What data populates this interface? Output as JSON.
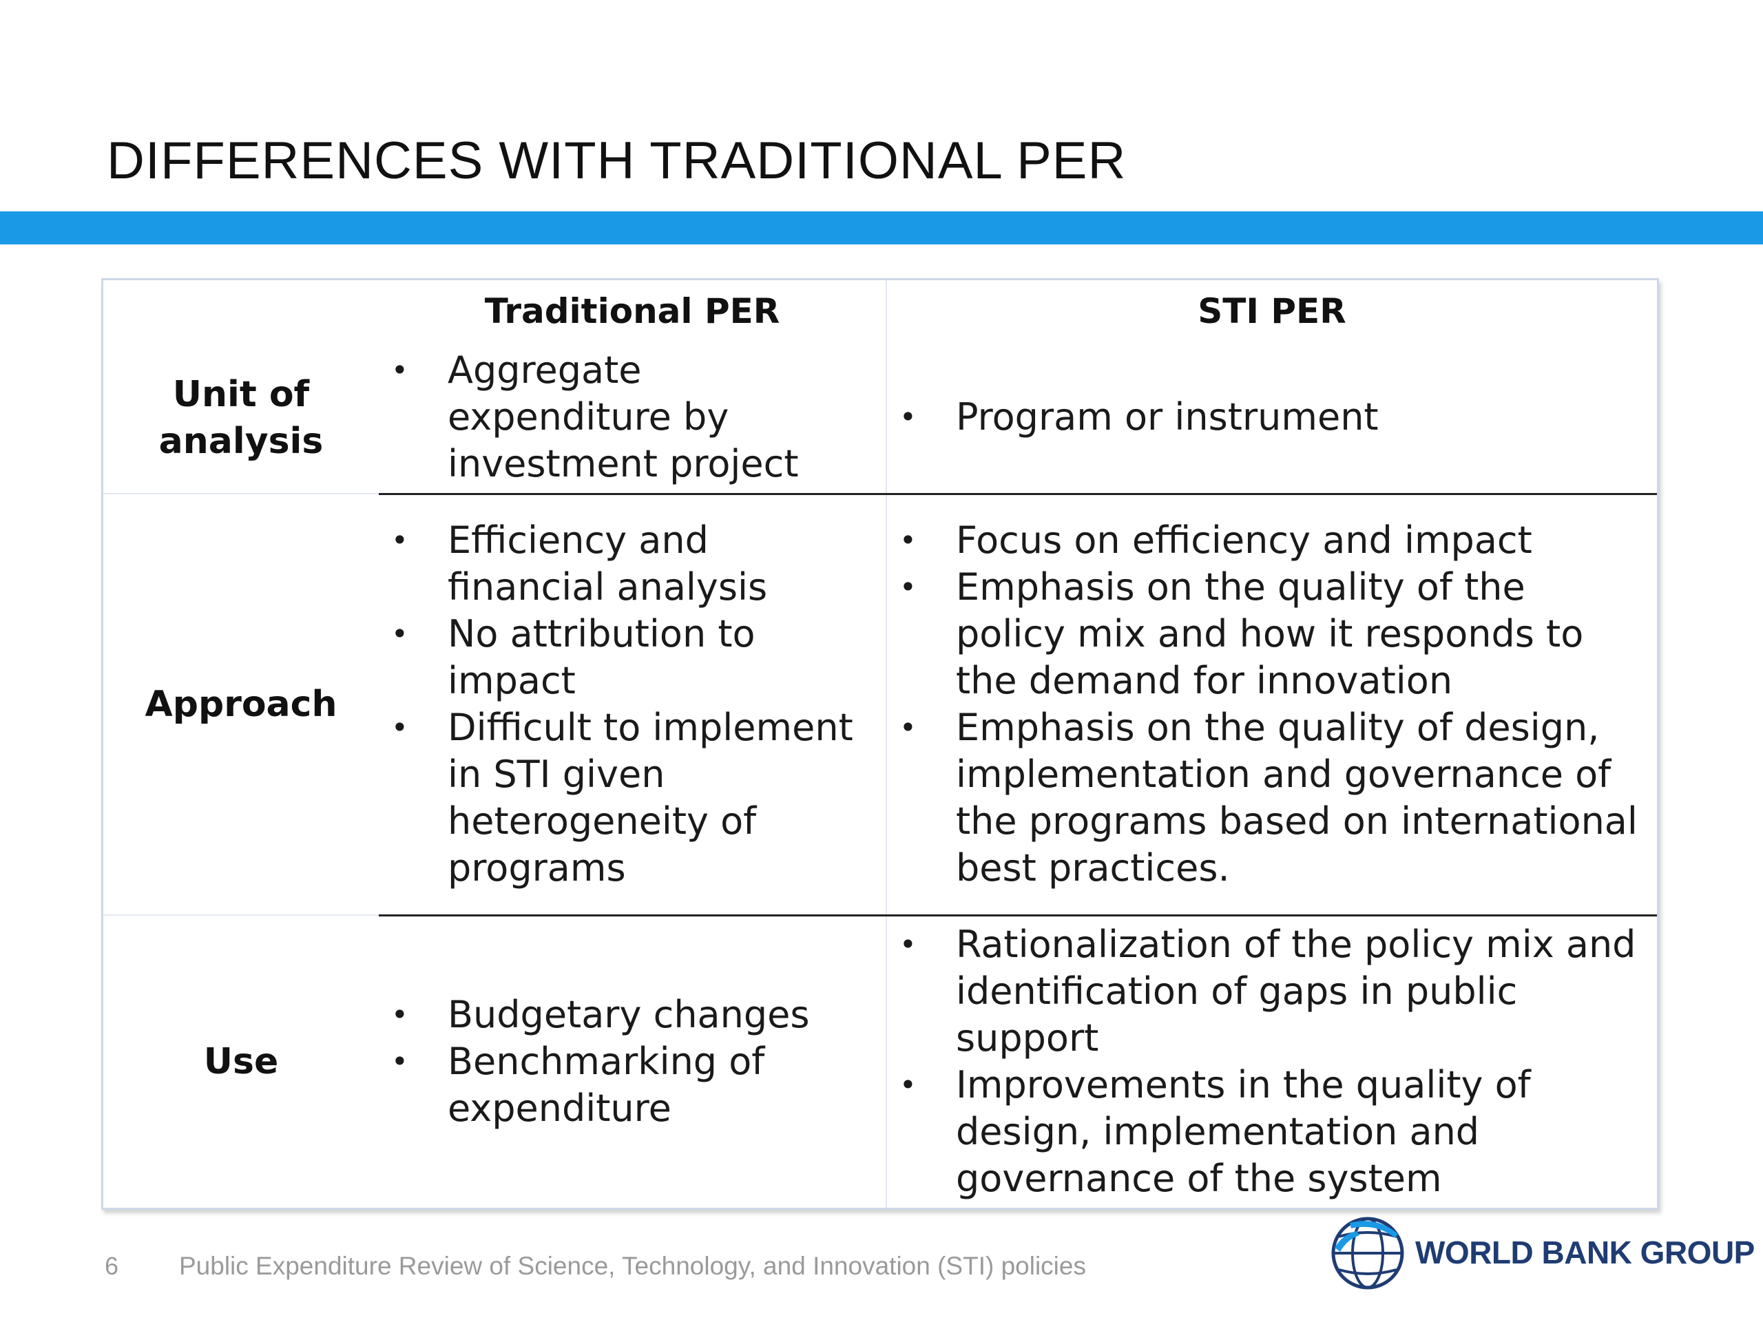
{
  "slide": {
    "title": "DIFFERENCES WITH TRADITIONAL PER",
    "accent_color": "#1a99e6"
  },
  "table": {
    "headers": {
      "traditional": "Traditional PER",
      "sti": "STI PER"
    },
    "rows": [
      {
        "label": "Unit of analysis",
        "traditional": [
          "Aggregate expenditure by investment project"
        ],
        "sti": [
          "Program or instrument"
        ]
      },
      {
        "label": "Approach",
        "traditional": [
          "Efficiency and financial analysis",
          "No attribution to impact",
          "Difficult to implement in STI given heterogeneity of programs"
        ],
        "sti": [
          "Focus on efficiency and impact",
          "Emphasis on the quality of the policy mix and how it responds to the demand for innovation",
          "Emphasis on the quality of design, implementation and governance of the programs based on international best practices."
        ]
      },
      {
        "label": "Use",
        "traditional": [
          "Budgetary changes",
          "Benchmarking of expenditure"
        ],
        "sti": [
          "Rationalization of the policy mix and identification of gaps in public support",
          "Improvements in the quality of design, implementation and governance of the system"
        ]
      }
    ]
  },
  "footer": {
    "page_number": "6",
    "text": "Public Expenditure Review of Science, Technology, and Innovation (STI) policies"
  },
  "logo": {
    "icon": "globe-icon",
    "text": "WORLD BANK GROUP",
    "color": "#1f3c73"
  }
}
